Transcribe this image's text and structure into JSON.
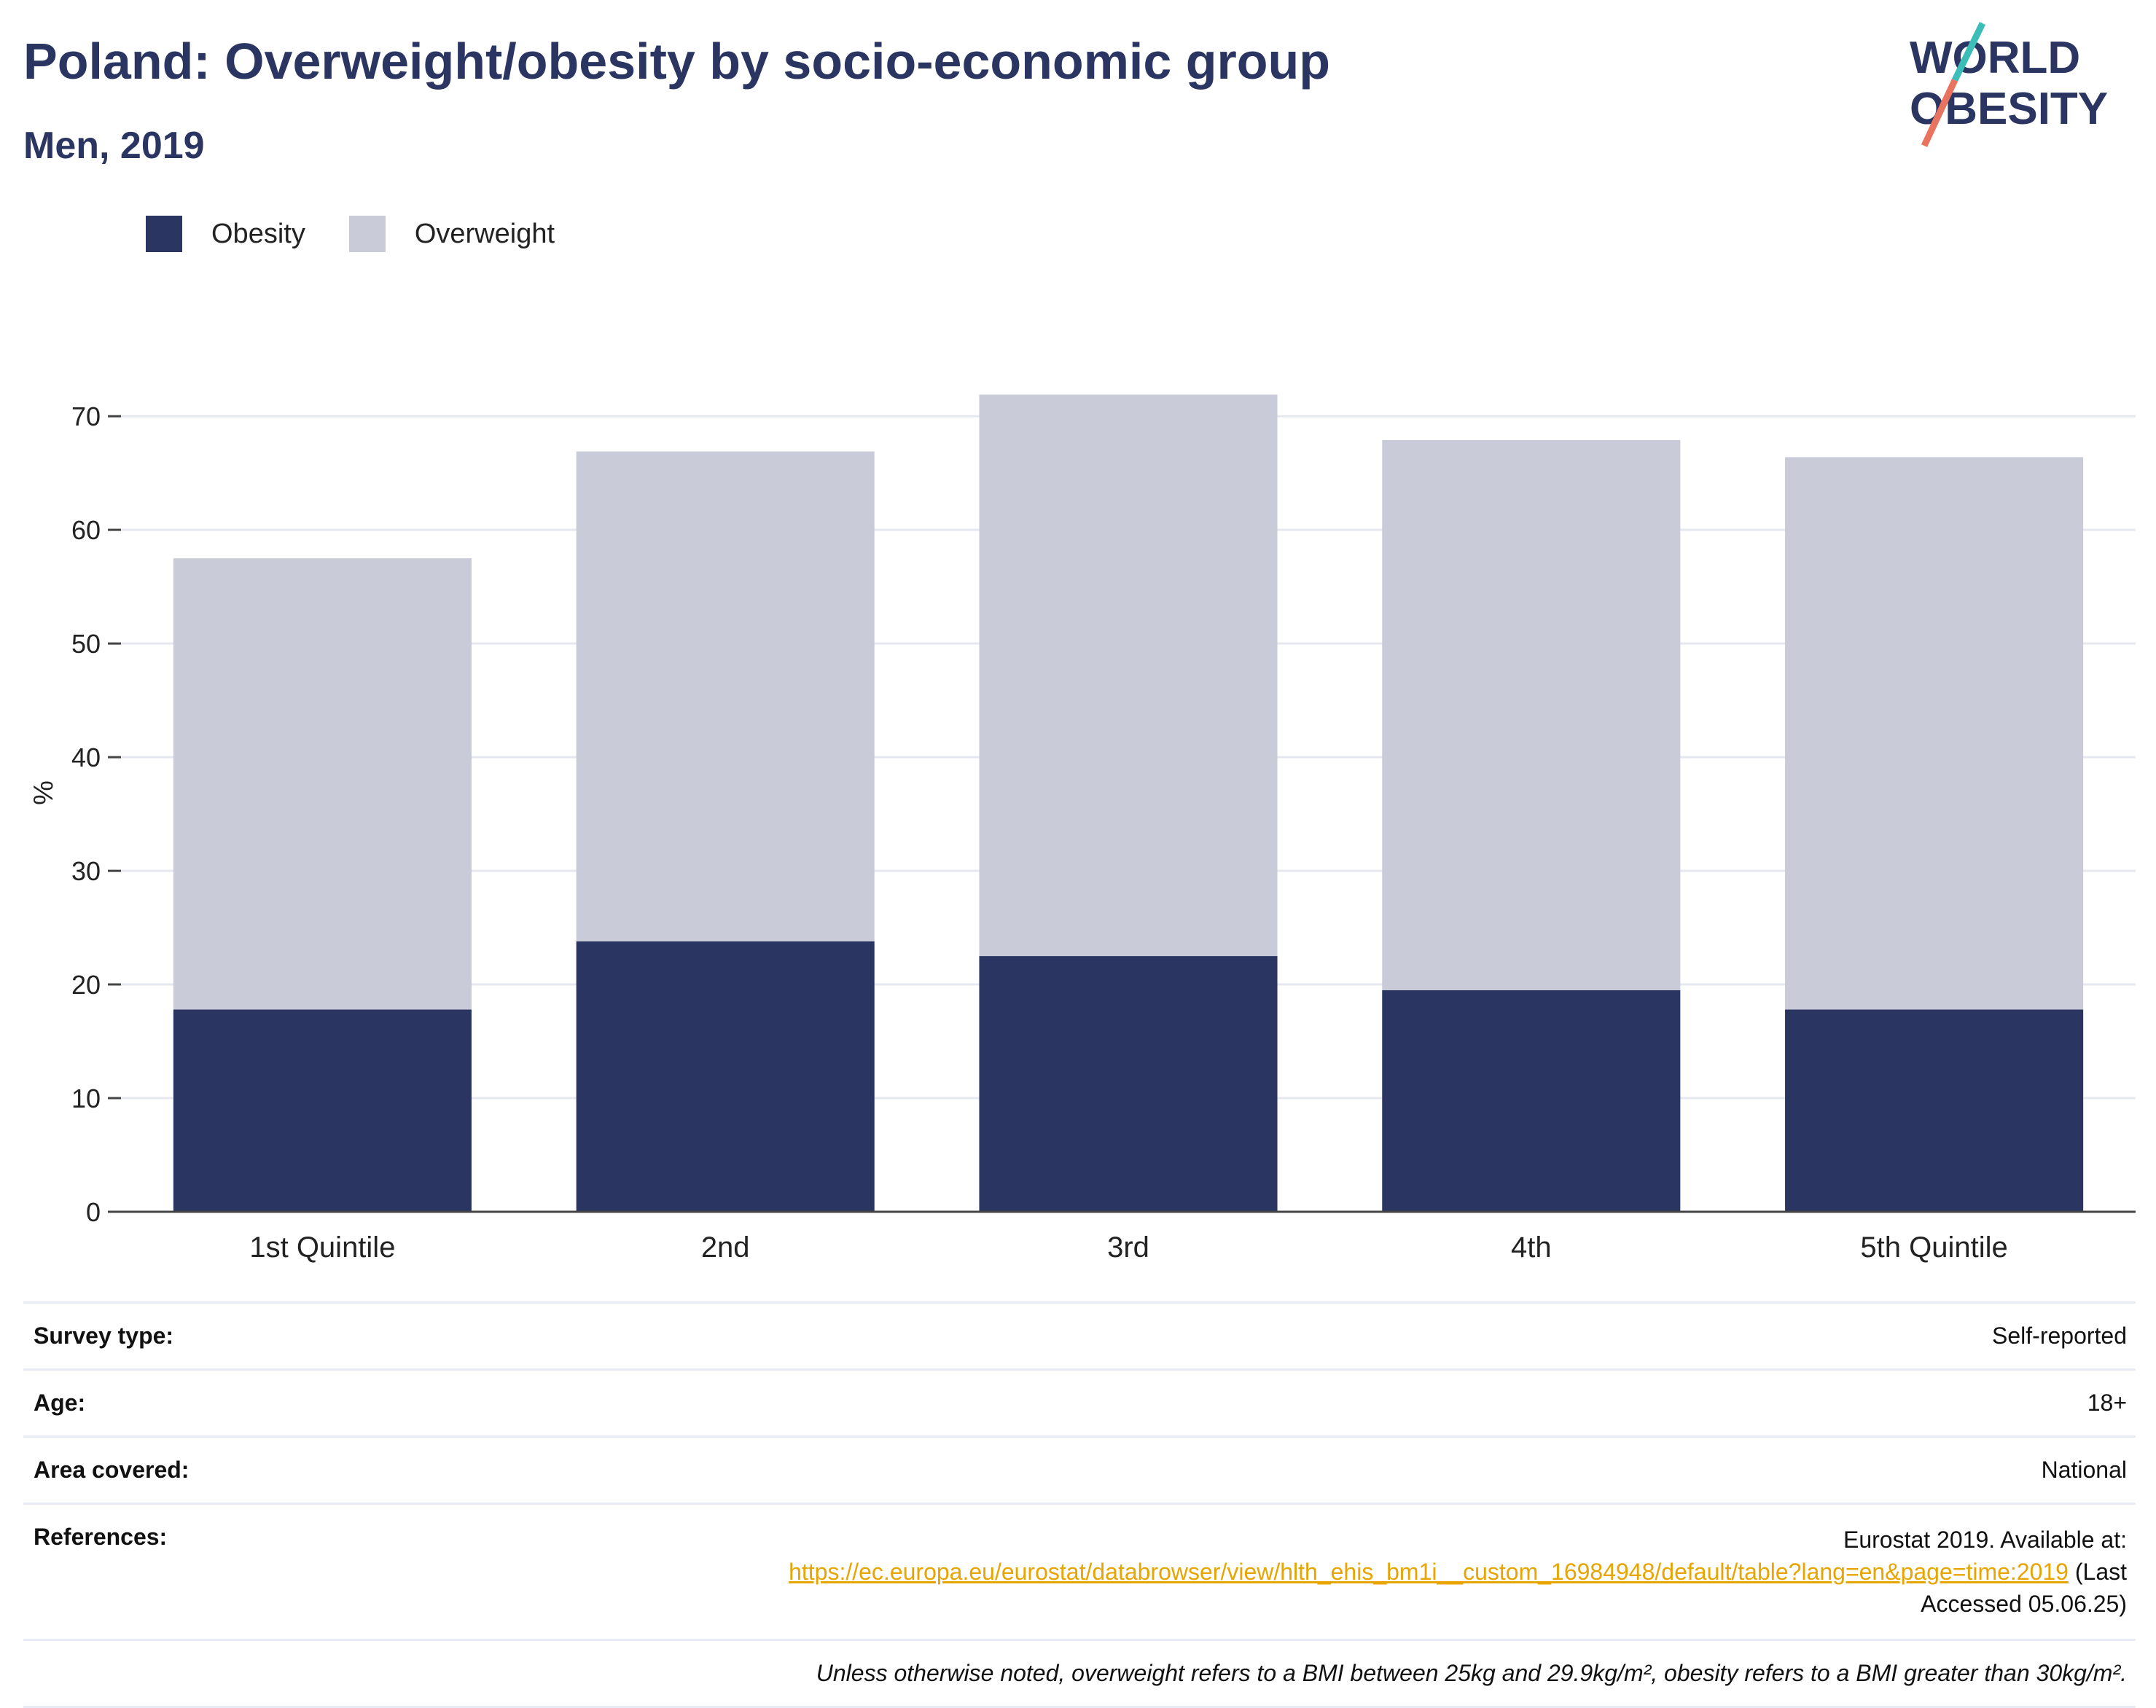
{
  "header": {
    "title": "Poland: Overweight/obesity by socio-economic group",
    "subtitle": "Men, 2019",
    "logo_line1": "WORLD",
    "logo_line2": "OBESITY"
  },
  "colors": {
    "obesity": "#2a3561",
    "overweight": "#c9ccd8",
    "grid": "#e6e8f0",
    "axis": "#444444",
    "link": "#e8a400",
    "logo_teal": "#3dbdb8",
    "logo_coral": "#e8735f"
  },
  "chart_data": {
    "type": "bar",
    "stacked": true,
    "categories": [
      "1st Quintile",
      "2nd",
      "3rd",
      "4th",
      "5th Quintile"
    ],
    "series": [
      {
        "name": "Obesity",
        "values": [
          17.8,
          23.8,
          22.5,
          19.5,
          17.8
        ]
      },
      {
        "name": "Overweight",
        "values": [
          39.7,
          43.1,
          49.4,
          48.4,
          48.6
        ]
      }
    ],
    "ylabel": "%",
    "xlabel": "",
    "ylim": [
      0,
      72
    ],
    "yticks": [
      0,
      10,
      20,
      30,
      40,
      50,
      60,
      70
    ],
    "grid": true,
    "legend_position": "top-left"
  },
  "meta": {
    "survey_type_label": "Survey type:",
    "survey_type_value": "Self-reported",
    "age_label": "Age:",
    "age_value": "18+",
    "area_label": "Area covered:",
    "area_value": "National",
    "references_label": "References:",
    "references_prefix": "Eurostat 2019. Available at:",
    "references_link": "https://ec.europa.eu/eurostat/databrowser/view/hlth_ehis_bm1i__custom_16984948/default/table?lang=en&page=time:2019",
    "references_suffix_1": "(Last",
    "references_suffix_2": "Accessed 05.06.25)",
    "note": "Unless otherwise noted, overweight refers to a BMI between 25kg and 29.9kg/m², obesity refers to a BMI greater than 30kg/m²."
  }
}
